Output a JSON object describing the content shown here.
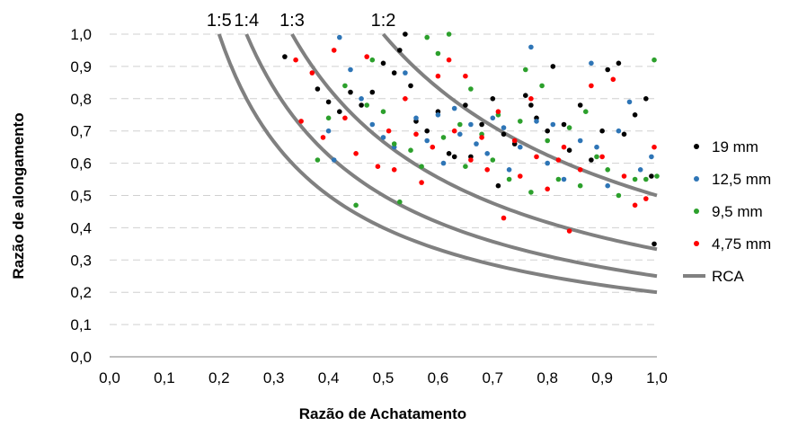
{
  "chart_data": {
    "type": "scatter",
    "xlabel": "Razão de Achatamento",
    "ylabel": "Razão de alongamento",
    "xlim": [
      0,
      1
    ],
    "ylim": [
      0,
      1
    ],
    "x_ticks": [
      "0,0",
      "0,1",
      "0,2",
      "0,3",
      "0,4",
      "0,5",
      "0,6",
      "0,7",
      "0,8",
      "0,9",
      "1,0"
    ],
    "y_ticks": [
      "0,0",
      "0,1",
      "0,2",
      "0,3",
      "0,4",
      "0,5",
      "0,6",
      "0,7",
      "0,8",
      "0,9",
      "1,0"
    ],
    "grid": "horizontal dashed",
    "legend_position": "right",
    "series": [
      {
        "name": "19 mm",
        "color": "#000000",
        "points": [
          [
            0.32,
            0.93
          ],
          [
            0.38,
            0.83
          ],
          [
            0.4,
            0.79
          ],
          [
            0.42,
            0.76
          ],
          [
            0.44,
            0.82
          ],
          [
            0.46,
            0.78
          ],
          [
            0.48,
            0.82
          ],
          [
            0.5,
            0.91
          ],
          [
            0.52,
            0.88
          ],
          [
            0.53,
            0.95
          ],
          [
            0.54,
            1.0
          ],
          [
            0.55,
            0.84
          ],
          [
            0.56,
            0.73
          ],
          [
            0.58,
            0.7
          ],
          [
            0.6,
            0.76
          ],
          [
            0.62,
            0.63
          ],
          [
            0.63,
            0.62
          ],
          [
            0.65,
            0.78
          ],
          [
            0.66,
            0.62
          ],
          [
            0.68,
            0.72
          ],
          [
            0.7,
            0.8
          ],
          [
            0.71,
            0.53
          ],
          [
            0.72,
            0.69
          ],
          [
            0.74,
            0.66
          ],
          [
            0.76,
            0.81
          ],
          [
            0.77,
            0.78
          ],
          [
            0.78,
            0.74
          ],
          [
            0.8,
            0.7
          ],
          [
            0.81,
            0.9
          ],
          [
            0.83,
            0.72
          ],
          [
            0.84,
            0.64
          ],
          [
            0.86,
            0.78
          ],
          [
            0.88,
            0.61
          ],
          [
            0.9,
            0.7
          ],
          [
            0.91,
            0.89
          ],
          [
            0.93,
            0.91
          ],
          [
            0.94,
            0.69
          ],
          [
            0.96,
            0.75
          ],
          [
            0.98,
            0.8
          ],
          [
            0.99,
            0.56
          ],
          [
            0.995,
            0.35
          ]
        ]
      },
      {
        "name": "12,5 mm",
        "color": "#2e75b6",
        "points": [
          [
            0.4,
            0.7
          ],
          [
            0.41,
            0.61
          ],
          [
            0.42,
            0.99
          ],
          [
            0.44,
            0.89
          ],
          [
            0.46,
            0.8
          ],
          [
            0.48,
            0.72
          ],
          [
            0.5,
            0.68
          ],
          [
            0.52,
            0.65
          ],
          [
            0.54,
            0.88
          ],
          [
            0.56,
            0.74
          ],
          [
            0.58,
            0.67
          ],
          [
            0.6,
            0.75
          ],
          [
            0.61,
            0.6
          ],
          [
            0.63,
            0.77
          ],
          [
            0.64,
            0.69
          ],
          [
            0.66,
            0.72
          ],
          [
            0.67,
            0.66
          ],
          [
            0.69,
            0.63
          ],
          [
            0.7,
            0.74
          ],
          [
            0.72,
            0.71
          ],
          [
            0.73,
            0.58
          ],
          [
            0.75,
            0.65
          ],
          [
            0.77,
            0.96
          ],
          [
            0.78,
            0.73
          ],
          [
            0.8,
            0.6
          ],
          [
            0.81,
            0.72
          ],
          [
            0.83,
            0.55
          ],
          [
            0.86,
            0.67
          ],
          [
            0.88,
            0.91
          ],
          [
            0.89,
            0.65
          ],
          [
            0.91,
            0.53
          ],
          [
            0.93,
            0.7
          ],
          [
            0.95,
            0.79
          ],
          [
            0.97,
            0.58
          ],
          [
            0.99,
            0.62
          ]
        ]
      },
      {
        "name": "9,5 mm",
        "color": "#2ca02c",
        "points": [
          [
            0.38,
            0.61
          ],
          [
            0.4,
            0.74
          ],
          [
            0.43,
            0.84
          ],
          [
            0.45,
            0.47
          ],
          [
            0.47,
            0.78
          ],
          [
            0.48,
            0.92
          ],
          [
            0.5,
            0.76
          ],
          [
            0.52,
            0.66
          ],
          [
            0.53,
            0.48
          ],
          [
            0.55,
            0.64
          ],
          [
            0.57,
            0.59
          ],
          [
            0.58,
            0.99
          ],
          [
            0.6,
            0.94
          ],
          [
            0.61,
            0.68
          ],
          [
            0.62,
            1.0
          ],
          [
            0.64,
            0.72
          ],
          [
            0.65,
            0.59
          ],
          [
            0.66,
            0.83
          ],
          [
            0.68,
            0.69
          ],
          [
            0.7,
            0.61
          ],
          [
            0.71,
            0.75
          ],
          [
            0.73,
            0.55
          ],
          [
            0.75,
            0.73
          ],
          [
            0.76,
            0.89
          ],
          [
            0.77,
            0.51
          ],
          [
            0.79,
            0.84
          ],
          [
            0.8,
            0.67
          ],
          [
            0.82,
            0.55
          ],
          [
            0.84,
            0.71
          ],
          [
            0.86,
            0.53
          ],
          [
            0.87,
            0.76
          ],
          [
            0.89,
            0.62
          ],
          [
            0.91,
            0.58
          ],
          [
            0.93,
            0.5
          ],
          [
            0.96,
            0.55
          ],
          [
            0.98,
            0.55
          ],
          [
            0.995,
            0.92
          ],
          [
            1.0,
            0.56
          ]
        ]
      },
      {
        "name": "4,75 mm",
        "color": "#ff0000",
        "points": [
          [
            0.34,
            0.92
          ],
          [
            0.35,
            0.73
          ],
          [
            0.37,
            0.88
          ],
          [
            0.39,
            0.68
          ],
          [
            0.41,
            0.95
          ],
          [
            0.43,
            0.74
          ],
          [
            0.45,
            0.63
          ],
          [
            0.47,
            0.93
          ],
          [
            0.49,
            0.59
          ],
          [
            0.51,
            0.7
          ],
          [
            0.52,
            0.58
          ],
          [
            0.54,
            0.8
          ],
          [
            0.56,
            0.69
          ],
          [
            0.57,
            0.54
          ],
          [
            0.59,
            0.65
          ],
          [
            0.6,
            0.87
          ],
          [
            0.62,
            0.92
          ],
          [
            0.63,
            0.7
          ],
          [
            0.65,
            0.87
          ],
          [
            0.66,
            0.61
          ],
          [
            0.68,
            0.68
          ],
          [
            0.69,
            0.58
          ],
          [
            0.71,
            0.76
          ],
          [
            0.72,
            0.43
          ],
          [
            0.74,
            0.67
          ],
          [
            0.75,
            0.56
          ],
          [
            0.77,
            0.8
          ],
          [
            0.78,
            0.62
          ],
          [
            0.8,
            0.52
          ],
          [
            0.82,
            0.61
          ],
          [
            0.83,
            0.65
          ],
          [
            0.84,
            0.39
          ],
          [
            0.86,
            0.58
          ],
          [
            0.88,
            0.84
          ],
          [
            0.9,
            0.62
          ],
          [
            0.92,
            0.86
          ],
          [
            0.94,
            0.56
          ],
          [
            0.96,
            0.47
          ],
          [
            0.98,
            0.49
          ],
          [
            0.995,
            0.65
          ]
        ]
      }
    ],
    "rca_curves": [
      {
        "label": "1:5",
        "ratio": 0.2
      },
      {
        "label": "1:4",
        "ratio": 0.25
      },
      {
        "label": "1:3",
        "ratio": 0.3333
      },
      {
        "label": "1:2",
        "ratio": 0.5
      }
    ],
    "rca_label": "RCA",
    "rca_color": "#808080"
  }
}
